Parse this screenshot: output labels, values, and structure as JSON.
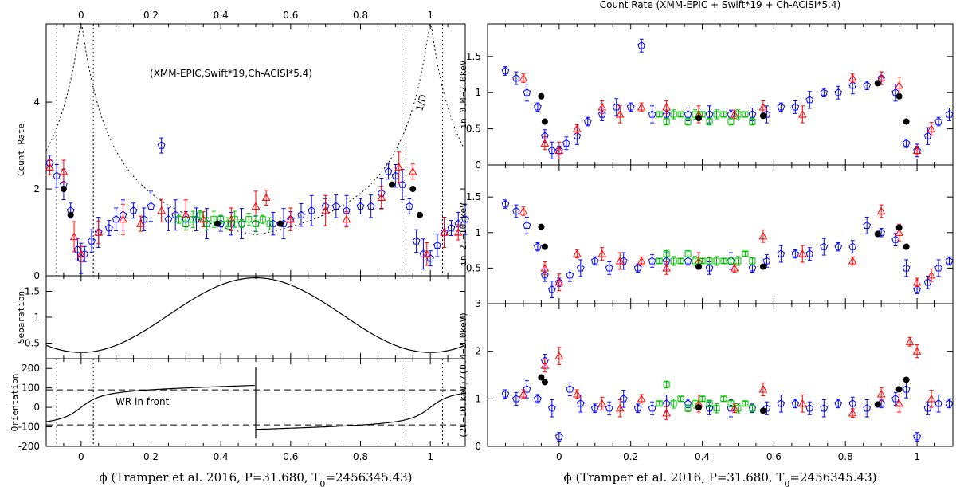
{
  "chart_data": [
    {
      "id": "left-count-rate",
      "type": "scatter",
      "xlim": [
        -0.1,
        1.1
      ],
      "ylim": [
        0,
        5.8
      ],
      "ylabel": "Count Rate",
      "top_axis_ticks": [
        "0",
        "0.2",
        "0.4",
        "0.6",
        "0.8",
        "1"
      ],
      "y_ticks": [
        "0",
        "2",
        "4"
      ],
      "annotation": "(XMM-EPIC,Swift*19,Ch-ACISI*5.4)",
      "curve_label": "1/D",
      "series": [
        {
          "name": "Swift",
          "color": "#0000ff",
          "marker": "pentagon",
          "x": [
            -0.09,
            -0.07,
            -0.05,
            -0.03,
            -0.01,
            0.0,
            0.01,
            0.03,
            0.05,
            0.08,
            0.1,
            0.12,
            0.15,
            0.18,
            0.2,
            0.23,
            0.25,
            0.27,
            0.3,
            0.33,
            0.36,
            0.4,
            0.43,
            0.46,
            0.5,
            0.55,
            0.58,
            0.6,
            0.63,
            0.66,
            0.7,
            0.73,
            0.76,
            0.8,
            0.83,
            0.86,
            0.88,
            0.9,
            0.92,
            0.94,
            0.96,
            0.98,
            1.0,
            1.02,
            1.04,
            1.06,
            1.08,
            1.1
          ],
          "y": [
            2.6,
            2.3,
            2.1,
            1.5,
            0.6,
            0.4,
            0.5,
            0.8,
            1.0,
            1.1,
            1.3,
            1.4,
            1.5,
            1.3,
            1.6,
            3.0,
            1.3,
            1.4,
            1.3,
            1.3,
            1.2,
            1.2,
            1.2,
            1.2,
            1.2,
            1.2,
            1.2,
            1.3,
            1.4,
            1.5,
            1.6,
            1.6,
            1.5,
            1.6,
            1.6,
            1.9,
            2.4,
            2.3,
            2.1,
            1.6,
            0.8,
            0.5,
            0.4,
            0.7,
            1.0,
            1.1,
            1.2,
            1.3
          ]
        },
        {
          "name": "Chandra",
          "color": "#ff0000",
          "marker": "triangle",
          "x": [
            -0.09,
            -0.05,
            -0.02,
            0.0,
            0.05,
            0.12,
            0.17,
            0.23,
            0.3,
            0.35,
            0.43,
            0.5,
            0.53,
            0.6,
            0.7,
            0.76,
            0.86,
            0.91,
            0.95,
            0.99,
            1.04,
            1.08
          ],
          "y": [
            2.5,
            2.4,
            0.9,
            0.5,
            1.0,
            1.3,
            1.2,
            1.5,
            1.4,
            1.3,
            1.3,
            1.6,
            1.8,
            1.3,
            1.5,
            1.3,
            1.8,
            2.5,
            2.4,
            0.5,
            1.0,
            1.0
          ]
        },
        {
          "name": "XMM",
          "color": "#00c000",
          "marker": "square",
          "x": [
            0.28,
            0.3,
            0.32,
            0.34,
            0.36,
            0.38,
            0.4,
            0.42,
            0.44,
            0.46,
            0.48,
            0.5,
            0.52,
            0.54
          ],
          "y": [
            1.3,
            1.2,
            1.3,
            1.4,
            1.2,
            1.3,
            1.3,
            1.2,
            1.3,
            1.2,
            1.3,
            1.2,
            1.3,
            1.2
          ]
        },
        {
          "name": "Mean",
          "color": "#000000",
          "marker": "circle",
          "x": [
            -0.05,
            -0.03,
            0.39,
            0.57,
            0.89,
            0.95,
            0.97
          ],
          "y": [
            2.0,
            1.4,
            1.2,
            1.2,
            2.1,
            2.0,
            1.4
          ]
        }
      ]
    },
    {
      "id": "left-separation",
      "type": "line",
      "ylabel": "Separation",
      "xlim": [
        -0.1,
        1.1
      ],
      "ylim": [
        0.2,
        1.8
      ],
      "y_ticks": [
        "0.5",
        "1",
        "1.5"
      ]
    },
    {
      "id": "left-orientation",
      "type": "line",
      "ylabel": "Orientation",
      "xlim": [
        -0.1,
        1.1
      ],
      "ylim": [
        -200,
        250
      ],
      "y_ticks": [
        "-200",
        "-100",
        "0",
        "100",
        "200"
      ],
      "x_ticks": [
        "0",
        "0.2",
        "0.4",
        "0.6",
        "0.8",
        "1"
      ],
      "annotation": "WR in front",
      "xlabel": "ϕ (Tramper et al. 2016, P=31.680, T",
      "xlabel_sub": "0",
      "xlabel_end": "=2456345.43)"
    },
    {
      "id": "right-soft",
      "type": "scatter",
      "title": "Count Rate (XMM-EPIC + Swift*19 + Ch-ACISI*5.4)",
      "ylabel": "in 0.4−2.0keV",
      "xlim": [
        -0.2,
        1.1
      ],
      "ylim": [
        0,
        1.95
      ],
      "y_ticks": [
        "0",
        "0.5",
        "1",
        "1.5"
      ],
      "series": [
        {
          "name": "Swift",
          "color": "#0000ff",
          "marker": "pentagon",
          "x": [
            -0.15,
            -0.12,
            -0.09,
            -0.06,
            -0.04,
            -0.02,
            0.0,
            0.02,
            0.05,
            0.08,
            0.12,
            0.16,
            0.2,
            0.23,
            0.26,
            0.3,
            0.36,
            0.42,
            0.48,
            0.54,
            0.58,
            0.62,
            0.66,
            0.7,
            0.74,
            0.78,
            0.82,
            0.86,
            0.9,
            0.94,
            0.97,
            1.0,
            1.03,
            1.06,
            1.09
          ],
          "y": [
            1.3,
            1.2,
            1.0,
            0.8,
            0.4,
            0.2,
            0.2,
            0.3,
            0.4,
            0.6,
            0.7,
            0.8,
            0.8,
            1.65,
            0.7,
            0.7,
            0.7,
            0.7,
            0.7,
            0.7,
            0.7,
            0.8,
            0.8,
            0.9,
            1.0,
            1.0,
            1.1,
            1.1,
            1.2,
            1.0,
            0.3,
            0.2,
            0.4,
            0.6,
            0.7
          ]
        },
        {
          "name": "Chandra",
          "color": "#ff0000",
          "marker": "triangle",
          "x": [
            -0.1,
            -0.04,
            0.0,
            0.05,
            0.12,
            0.17,
            0.23,
            0.3,
            0.39,
            0.49,
            0.57,
            0.68,
            0.82,
            0.9,
            0.95,
            1.0,
            1.04
          ],
          "y": [
            1.2,
            0.3,
            0.2,
            0.5,
            0.8,
            0.7,
            0.8,
            0.8,
            0.7,
            0.7,
            0.8,
            0.7,
            1.2,
            1.2,
            1.1,
            0.2,
            0.5
          ]
        },
        {
          "name": "XMM",
          "color": "#00c000",
          "marker": "square",
          "x": [
            0.28,
            0.3,
            0.32,
            0.34,
            0.36,
            0.38,
            0.4,
            0.42,
            0.44,
            0.46,
            0.48,
            0.5,
            0.52,
            0.54
          ],
          "y": [
            0.7,
            0.6,
            0.7,
            0.7,
            0.6,
            0.7,
            0.7,
            0.6,
            0.7,
            0.7,
            0.6,
            0.7,
            0.7,
            0.6
          ]
        },
        {
          "name": "Mean",
          "color": "#000000",
          "marker": "circle",
          "x": [
            -0.05,
            -0.04,
            0.39,
            0.57,
            0.89,
            0.95,
            0.97
          ],
          "y": [
            0.95,
            0.6,
            0.65,
            0.68,
            1.13,
            0.95,
            0.6
          ]
        }
      ]
    },
    {
      "id": "right-hard",
      "type": "scatter",
      "ylabel": "in 2.−10.keV",
      "xlim": [
        -0.2,
        1.1
      ],
      "ylim": [
        0,
        1.95
      ],
      "y_ticks": [
        "0.5",
        "1",
        "1.5"
      ],
      "series": [
        {
          "name": "Swift",
          "color": "#0000ff",
          "marker": "pentagon",
          "x": [
            -0.15,
            -0.12,
            -0.09,
            -0.06,
            -0.04,
            -0.02,
            0.0,
            0.03,
            0.06,
            0.1,
            0.14,
            0.18,
            0.22,
            0.26,
            0.3,
            0.36,
            0.42,
            0.48,
            0.54,
            0.58,
            0.62,
            0.66,
            0.7,
            0.74,
            0.78,
            0.82,
            0.86,
            0.9,
            0.94,
            0.97,
            1.0,
            1.03,
            1.06,
            1.09
          ],
          "y": [
            1.4,
            1.3,
            1.1,
            0.8,
            0.4,
            0.2,
            0.3,
            0.4,
            0.5,
            0.6,
            0.5,
            0.6,
            0.5,
            0.6,
            0.6,
            0.6,
            0.5,
            0.6,
            0.5,
            0.6,
            0.7,
            0.7,
            0.7,
            0.8,
            0.8,
            0.8,
            1.1,
            1.0,
            0.9,
            0.5,
            0.2,
            0.3,
            0.5,
            0.6
          ]
        },
        {
          "name": "Chandra",
          "color": "#ff0000",
          "marker": "triangle",
          "x": [
            -0.1,
            -0.04,
            0.0,
            0.05,
            0.12,
            0.17,
            0.23,
            0.3,
            0.39,
            0.49,
            0.57,
            0.68,
            0.82,
            0.9,
            0.95,
            1.0,
            1.04
          ],
          "y": [
            1.3,
            0.5,
            0.3,
            0.7,
            0.7,
            0.6,
            0.6,
            0.5,
            0.6,
            0.5,
            0.95,
            0.7,
            0.6,
            1.3,
            1.0,
            0.3,
            0.4
          ]
        },
        {
          "name": "XMM",
          "color": "#00c000",
          "marker": "square",
          "x": [
            0.28,
            0.3,
            0.32,
            0.34,
            0.36,
            0.38,
            0.4,
            0.42,
            0.44,
            0.46,
            0.48,
            0.5,
            0.52,
            0.54
          ],
          "y": [
            0.6,
            0.7,
            0.6,
            0.6,
            0.7,
            0.6,
            0.6,
            0.6,
            0.6,
            0.6,
            0.6,
            0.6,
            0.7,
            0.6
          ]
        },
        {
          "name": "Mean",
          "color": "#000000",
          "marker": "circle",
          "x": [
            -0.05,
            -0.04,
            0.39,
            0.57,
            0.89,
            0.95,
            0.97
          ],
          "y": [
            1.08,
            0.8,
            0.52,
            0.52,
            0.98,
            1.07,
            0.8
          ]
        }
      ]
    },
    {
      "id": "right-ratio",
      "type": "scatter",
      "ylabel": "(2.−10.keV)/(0.4−2.0keV)",
      "xlim": [
        -0.2,
        1.1
      ],
      "ylim": [
        0,
        3
      ],
      "y_ticks": [
        "0",
        "1",
        "2",
        "3"
      ],
      "x_ticks": [
        "0",
        "0.2",
        "0.4",
        "0.6",
        "0.8",
        "1"
      ],
      "xlabel": "ϕ (Tramper et al. 2016, P=31.680, T",
      "xlabel_sub": "0",
      "xlabel_end": "=2456345.43)",
      "series": [
        {
          "name": "Swift",
          "color": "#0000ff",
          "marker": "pentagon",
          "x": [
            -0.15,
            -0.12,
            -0.09,
            -0.06,
            -0.04,
            -0.02,
            0.0,
            0.03,
            0.06,
            0.1,
            0.14,
            0.18,
            0.22,
            0.26,
            0.3,
            0.36,
            0.42,
            0.48,
            0.54,
            0.58,
            0.62,
            0.66,
            0.7,
            0.74,
            0.78,
            0.82,
            0.86,
            0.9,
            0.94,
            0.97,
            1.0,
            1.03,
            1.06,
            1.09
          ],
          "y": [
            1.1,
            1.0,
            1.2,
            1.0,
            1.8,
            0.8,
            0.2,
            1.2,
            0.9,
            0.8,
            0.8,
            1.0,
            0.8,
            0.8,
            0.9,
            0.9,
            0.8,
            0.8,
            0.8,
            0.8,
            0.9,
            0.9,
            0.8,
            0.8,
            0.9,
            0.9,
            0.8,
            0.9,
            1.0,
            1.2,
            0.2,
            0.8,
            0.9,
            0.9
          ]
        },
        {
          "name": "Chandra",
          "color": "#ff0000",
          "marker": "triangle",
          "x": [
            -0.1,
            -0.04,
            0.0,
            0.05,
            0.12,
            0.17,
            0.23,
            0.3,
            0.39,
            0.49,
            0.57,
            0.68,
            0.82,
            0.9,
            0.95,
            0.98,
            1.0,
            1.04
          ],
          "y": [
            1.1,
            1.7,
            1.9,
            1.1,
            0.9,
            0.8,
            1.0,
            0.7,
            0.9,
            0.8,
            1.2,
            0.9,
            0.7,
            1.1,
            0.9,
            2.2,
            2.0,
            1.0
          ]
        },
        {
          "name": "XMM",
          "color": "#00c000",
          "marker": "square",
          "x": [
            0.28,
            0.3,
            0.32,
            0.34,
            0.36,
            0.38,
            0.4,
            0.42,
            0.44,
            0.46,
            0.48,
            0.5,
            0.52,
            0.54
          ],
          "y": [
            0.9,
            1.3,
            0.9,
            1.0,
            0.8,
            0.9,
            1.0,
            0.9,
            0.8,
            1.0,
            0.9,
            0.8,
            0.9,
            0.8
          ]
        },
        {
          "name": "Mean",
          "color": "#000000",
          "marker": "circle",
          "x": [
            -0.05,
            -0.04,
            0.39,
            0.57,
            0.89,
            0.95,
            0.97
          ],
          "y": [
            1.45,
            1.35,
            0.82,
            0.75,
            0.88,
            1.2,
            1.4
          ]
        }
      ]
    }
  ]
}
